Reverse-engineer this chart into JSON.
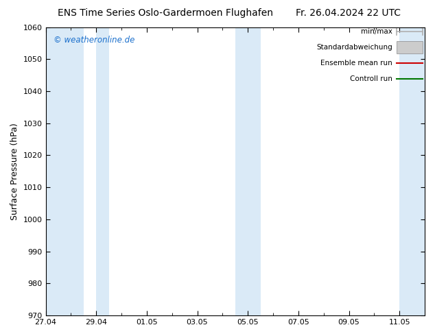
{
  "title_left": "ENS Time Series Oslo-Gardermoen Flughafen",
  "title_right": "Fr. 26.04.2024 22 UTC",
  "ylabel": "Surface Pressure (hPa)",
  "ylim": [
    970,
    1060
  ],
  "yticks": [
    970,
    980,
    990,
    1000,
    1010,
    1020,
    1030,
    1040,
    1050,
    1060
  ],
  "xlim": [
    0,
    15
  ],
  "xtick_labels": [
    "27.04",
    "29.04",
    "01.05",
    "03.05",
    "05.05",
    "07.05",
    "09.05",
    "11.05"
  ],
  "xtick_positions": [
    0,
    2,
    4,
    6,
    8,
    10,
    12,
    14
  ],
  "shaded_bands": [
    {
      "start": 0.0,
      "end": 1.5,
      "color": "#daeaf7"
    },
    {
      "start": 2.0,
      "end": 2.5,
      "color": "#daeaf7"
    },
    {
      "start": 7.5,
      "end": 8.5,
      "color": "#daeaf7"
    },
    {
      "start": 14.0,
      "end": 15.0,
      "color": "#daeaf7"
    }
  ],
  "watermark": "© weatheronline.de",
  "watermark_color": "#1a6fcc",
  "legend_items": [
    {
      "label": "min/max",
      "color": "#b0b0b0",
      "type": "hbar"
    },
    {
      "label": "Standardabweichung",
      "color": "#cccccc",
      "type": "rect"
    },
    {
      "label": "Ensemble mean run",
      "color": "#cc0000",
      "type": "line"
    },
    {
      "label": "Controll run",
      "color": "#007700",
      "type": "line"
    }
  ],
  "bg_color": "#ffffff",
  "plot_bg_color": "#ffffff",
  "title_fontsize": 10,
  "ylabel_fontsize": 9,
  "tick_fontsize": 8,
  "legend_fontsize": 7.5,
  "watermark_fontsize": 8.5
}
